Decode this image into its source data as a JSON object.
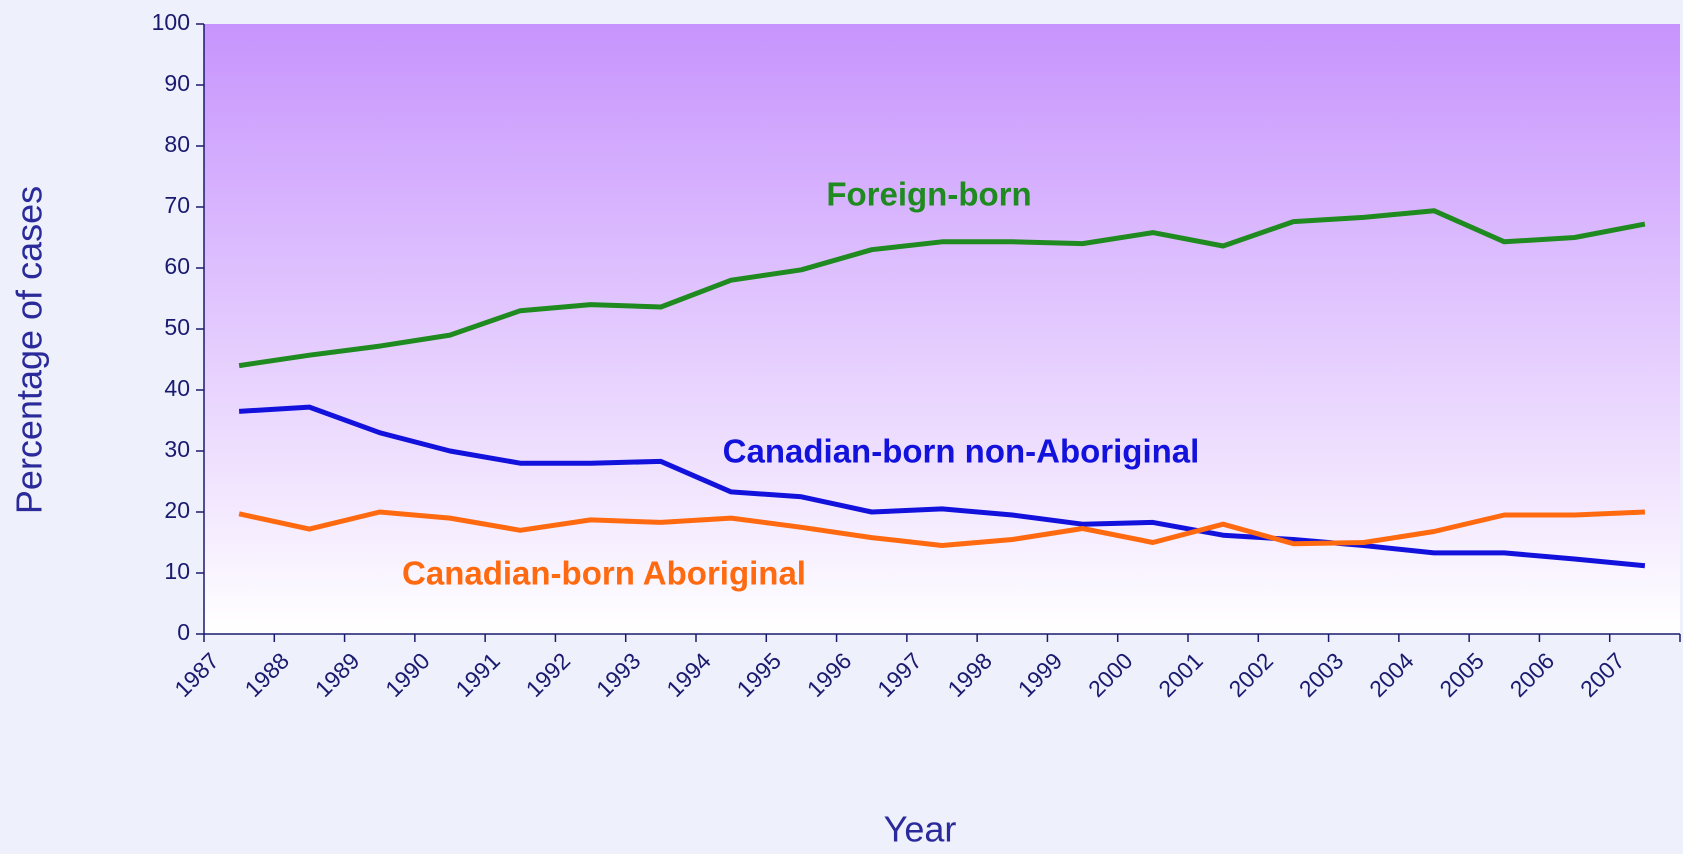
{
  "chart_data": {
    "type": "line",
    "xlabel": "Year",
    "ylabel": "Percentage of cases",
    "categories": [
      "1987",
      "1988",
      "1989",
      "1990",
      "1991",
      "1992",
      "1993",
      "1994",
      "1995",
      "1996",
      "1997",
      "1998",
      "1999",
      "2000",
      "2001",
      "2002",
      "2003",
      "2004",
      "2005",
      "2006",
      "2007"
    ],
    "series": [
      {
        "name": "Foreign-born",
        "color": "#1f8a1f",
        "values": [
          44,
          45.7,
          47.2,
          49,
          53,
          54,
          53.6,
          58,
          59.7,
          63,
          64.3,
          64.3,
          64,
          65.8,
          63.6,
          67.6,
          68.3,
          69.4,
          64.3,
          65,
          67.2
        ]
      },
      {
        "name": "Canadian-born non-Aboriginal",
        "color": "#1212dc",
        "values": [
          36.5,
          37.2,
          33,
          30,
          28,
          28,
          28.3,
          23.3,
          22.5,
          20,
          20.5,
          19.5,
          18,
          18.3,
          16.2,
          15.5,
          14.5,
          13.3,
          13.3,
          12.3,
          11.2
        ]
      },
      {
        "name": "Canadian-born Aboriginal",
        "color": "#ff6a10",
        "values": [
          19.7,
          17.2,
          20,
          19,
          17,
          18.7,
          18.3,
          19,
          17.5,
          15.8,
          14.5,
          15.5,
          17.3,
          15,
          18,
          14.8,
          15,
          16.8,
          19.5,
          19.5,
          20
        ]
      }
    ],
    "ylim": [
      0,
      100
    ],
    "yticks": [
      0,
      10,
      20,
      30,
      40,
      50,
      60,
      70,
      80,
      90,
      100
    ]
  }
}
